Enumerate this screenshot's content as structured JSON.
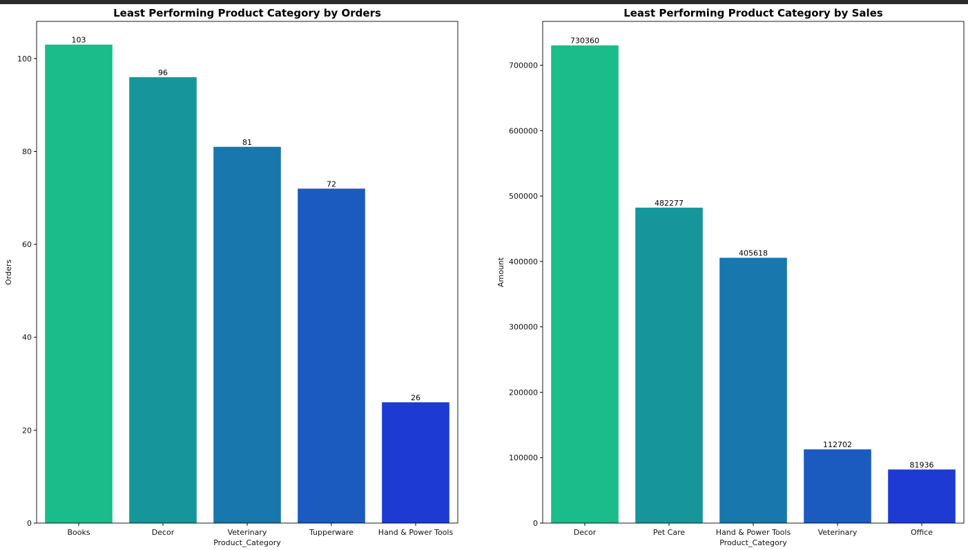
{
  "chart_data": [
    {
      "type": "bar",
      "title": "Least Performing Product Category by Orders",
      "xlabel": "Product_Category",
      "ylabel": "Orders",
      "categories": [
        "Books",
        "Decor",
        "Veterinary",
        "Tupperware",
        "Hand & Power Tools"
      ],
      "values": [
        103,
        96,
        81,
        72,
        26
      ],
      "data_labels": [
        "103",
        "96",
        "81",
        "72",
        "26"
      ],
      "ylim": [
        0,
        108
      ],
      "yticks": [
        0,
        20,
        40,
        60,
        80,
        100
      ],
      "ytick_labels": [
        "0",
        "20",
        "40",
        "60",
        "80",
        "100"
      ],
      "colors": [
        "#1abc8a",
        "#16969a",
        "#1877ad",
        "#1b5bc0",
        "#1d3ad2"
      ],
      "grid": false
    },
    {
      "type": "bar",
      "title": "Least Performing Product Category by Sales",
      "xlabel": "Product_Category",
      "ylabel": "Amount",
      "categories": [
        "Decor",
        "Pet Care",
        "Hand & Power Tools",
        "Veterinary",
        "Office"
      ],
      "values": [
        730360,
        482277,
        405618,
        112702,
        81936
      ],
      "data_labels": [
        "730360",
        "482277",
        "405618",
        "112702",
        "81936"
      ],
      "ylim": [
        0,
        767000
      ],
      "yticks": [
        0,
        100000,
        200000,
        300000,
        400000,
        500000,
        600000,
        700000
      ],
      "ytick_labels": [
        "0",
        "100000",
        "200000",
        "300000",
        "400000",
        "500000",
        "600000",
        "700000"
      ],
      "colors": [
        "#1abc8a",
        "#16969a",
        "#1877ad",
        "#1b5bc0",
        "#1d3ad2"
      ],
      "grid": false
    }
  ]
}
